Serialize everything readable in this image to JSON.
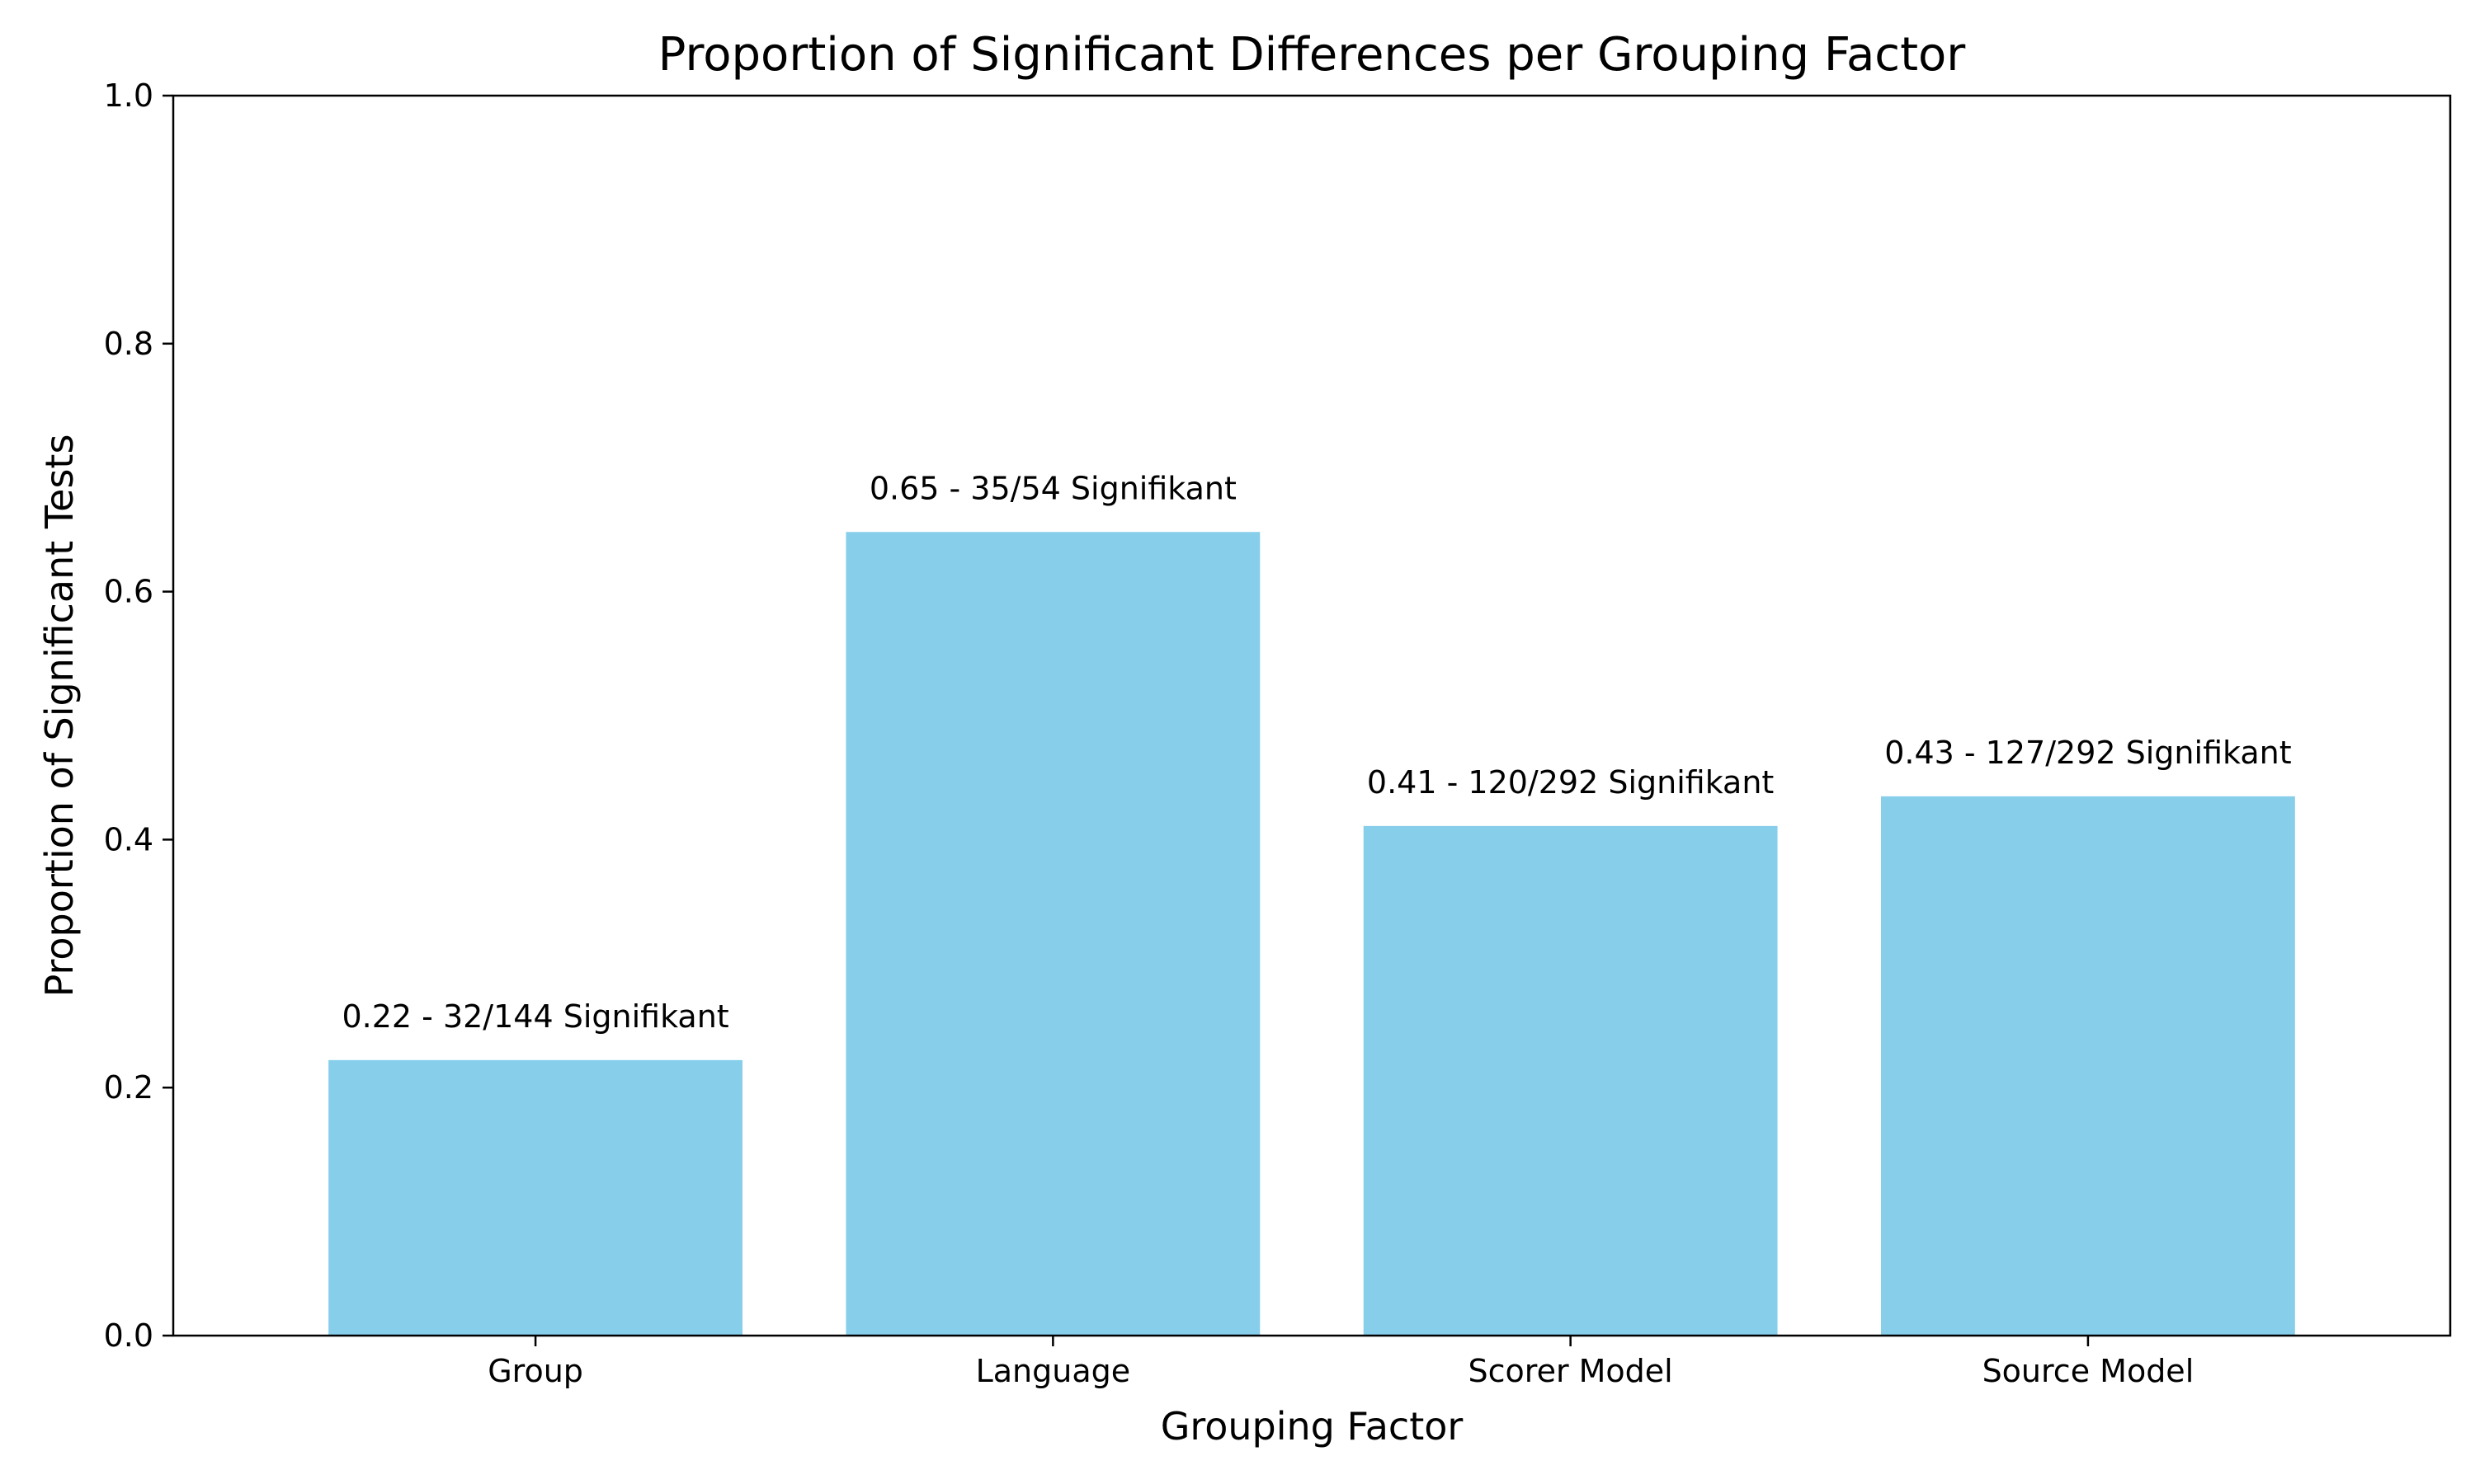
{
  "chart_data": {
    "type": "bar",
    "title": "Proportion of Significant Differences per Grouping Factor",
    "xlabel": "Grouping Factor",
    "ylabel": "Proportion of Significant Tests",
    "categories": [
      "Group",
      "Language",
      "Scorer Model",
      "Source Model"
    ],
    "values": [
      0.2222,
      0.6481,
      0.411,
      0.4349
    ],
    "data_labels": [
      "0.22 - 32/144 Signifikant",
      "0.65 - 35/54 Signifikant",
      "0.41 - 120/292 Signifikant",
      "0.43 - 127/292 Signifikant"
    ],
    "ylim": [
      0,
      1.0
    ],
    "yticks": [
      0.0,
      0.2,
      0.4,
      0.6,
      0.8,
      1.0
    ],
    "ytick_labels": [
      "0.0",
      "0.2",
      "0.4",
      "0.6",
      "0.8",
      "1.0"
    ],
    "bar_color": "#87CEEB",
    "grid": false,
    "legend": false
  }
}
